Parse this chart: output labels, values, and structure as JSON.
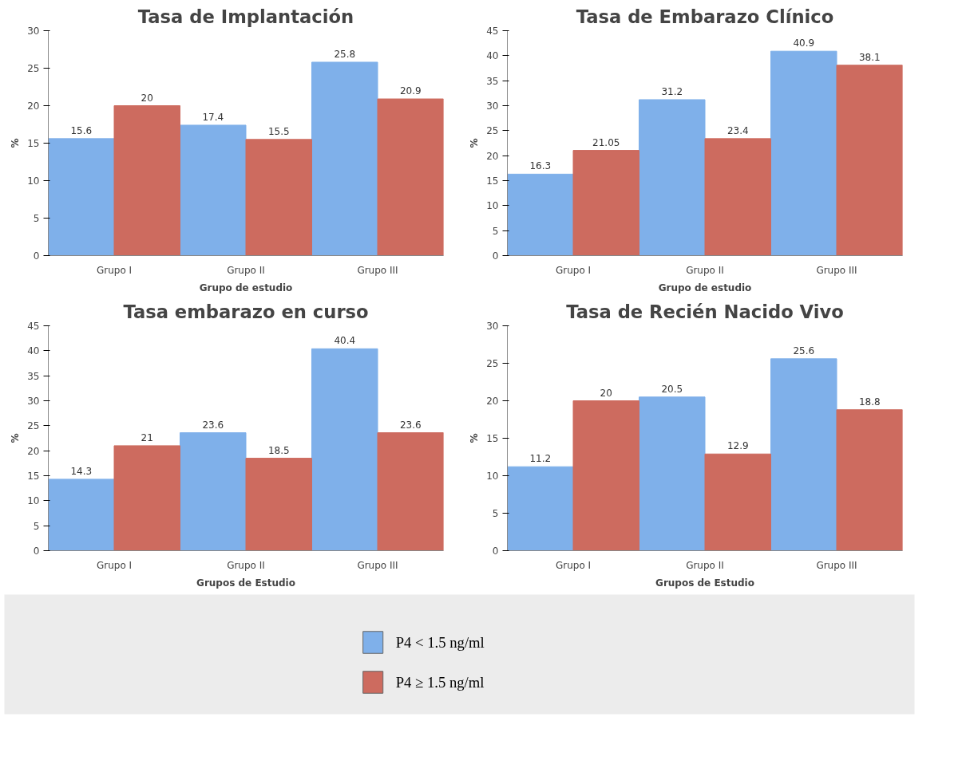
{
  "chart_data": [
    {
      "type": "bar",
      "title": "Tasa de Implantación",
      "xlabel": "Grupo de estudio",
      "ylabel": "%",
      "categories": [
        "Grupo I",
        "Grupo II",
        "Grupo III"
      ],
      "ylim": [
        0,
        30
      ],
      "yticks": [
        0,
        5,
        10,
        15,
        20,
        25,
        30
      ],
      "data_labels": true,
      "legend": "bottom",
      "series": [
        {
          "name": "P4 < 1.5 ng/ml",
          "color": "#7fb0ea",
          "values": [
            15.6,
            17.4,
            25.8
          ]
        },
        {
          "name": "P4 ≥ 1.5 ng/ml",
          "color": "#cd6b5f",
          "values": [
            20,
            15.5,
            20.9
          ]
        }
      ]
    },
    {
      "type": "bar",
      "title": "Tasa de Embarazo Clínico",
      "xlabel": "Grupo de estudio",
      "ylabel": "%",
      "categories": [
        "Grupo I",
        "Grupo II",
        "Grupo III"
      ],
      "ylim": [
        0,
        45
      ],
      "yticks": [
        0,
        5,
        10,
        15,
        20,
        25,
        30,
        35,
        40,
        45
      ],
      "data_labels": true,
      "series": [
        {
          "color": "#7fb0ea",
          "values": [
            16.3,
            31.2,
            40.9
          ]
        },
        {
          "color": "#cd6b5f",
          "values": [
            21.05,
            23.4,
            38.1
          ]
        }
      ]
    },
    {
      "type": "bar",
      "title": "Tasa embarazo en curso",
      "xlabel": "Grupos de Estudio",
      "ylabel": "%",
      "categories": [
        "Grupo I",
        "Grupo II",
        "Grupo III"
      ],
      "ylim": [
        0,
        45
      ],
      "yticks": [
        0,
        5,
        10,
        15,
        20,
        25,
        30,
        35,
        40,
        45
      ],
      "data_labels": true,
      "series": [
        {
          "color": "#7fb0ea",
          "values": [
            14.3,
            23.6,
            40.4
          ]
        },
        {
          "color": "#cd6b5f",
          "values": [
            21,
            18.5,
            23.6
          ]
        }
      ]
    },
    {
      "type": "bar",
      "title": "Tasa de Recién Nacido Vivo",
      "xlabel": "Grupos de Estudio",
      "ylabel": "%",
      "categories": [
        "Grupo I",
        "Grupo II",
        "Grupo III"
      ],
      "ylim": [
        0,
        30
      ],
      "yticks": [
        0,
        5,
        10,
        15,
        20,
        25,
        30
      ],
      "data_labels": true,
      "series": [
        {
          "color": "#7fb0ea",
          "values": [
            11.2,
            20.5,
            25.6
          ]
        },
        {
          "color": "#cd6b5f",
          "values": [
            20,
            12.9,
            18.8
          ]
        }
      ]
    }
  ]
}
